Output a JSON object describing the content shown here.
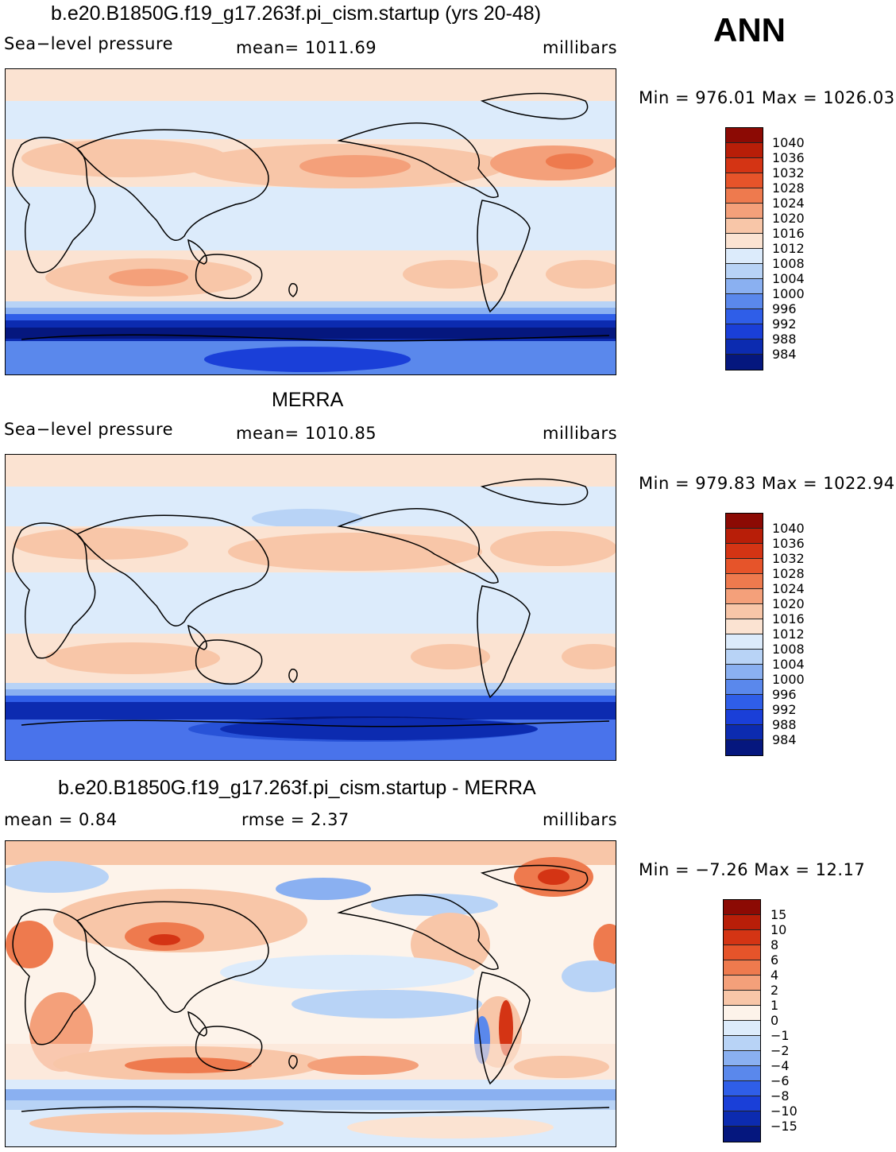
{
  "season": "ANN",
  "palette": {
    "pos": [
      "#fbe3d2",
      "#f8c6a8",
      "#f4a07a",
      "#ee7a4e",
      "#e6542a",
      "#d43414",
      "#b81e08",
      "#8c0a04"
    ],
    "neg": [
      "#dcebfb",
      "#b8d3f6",
      "#8ab0f1",
      "#5a88ec",
      "#2f5ee8",
      "#1a3fd8",
      "#0c2bb0",
      "#05177e"
    ],
    "neutral": "#fdf3ea",
    "land_outline": "#000000"
  },
  "panels": [
    {
      "title": "b.e20.B1850G.f19_g17.263f.pi_cism.startup (yrs 20-48)",
      "left_label": "Sea−level pressure",
      "center_label": "mean=  1011.69",
      "right_label": "millibars",
      "minmax": "Min  =  976.01  Max  =  1026.03",
      "colorbar_levels": [
        "1040",
        "1036",
        "1032",
        "1028",
        "1024",
        "1020",
        "1016",
        "1012",
        "1008",
        "1004",
        "1000",
        "996",
        "992",
        "988",
        "984"
      ]
    },
    {
      "title": "MERRA",
      "left_label": "Sea−level pressure",
      "center_label": "mean=  1010.85",
      "right_label": "millibars",
      "minmax": "Min  =  979.83  Max  =  1022.94",
      "colorbar_levels": [
        "1040",
        "1036",
        "1032",
        "1028",
        "1024",
        "1020",
        "1016",
        "1012",
        "1008",
        "1004",
        "1000",
        "996",
        "992",
        "988",
        "984"
      ]
    },
    {
      "title": "b.e20.B1850G.f19_g17.263f.pi_cism.startup - MERRA",
      "left_label": "mean =     0.84",
      "center_label": "rmse =     2.37",
      "right_label": "millibars",
      "minmax": "Min  =   −7.26  Max  =    12.17",
      "colorbar_levels": [
        "15",
        "10",
        "8",
        "6",
        "4",
        "2",
        "1",
        "0",
        "−1",
        "−2",
        "−4",
        "−6",
        "−8",
        "−10",
        "−15"
      ]
    }
  ]
}
